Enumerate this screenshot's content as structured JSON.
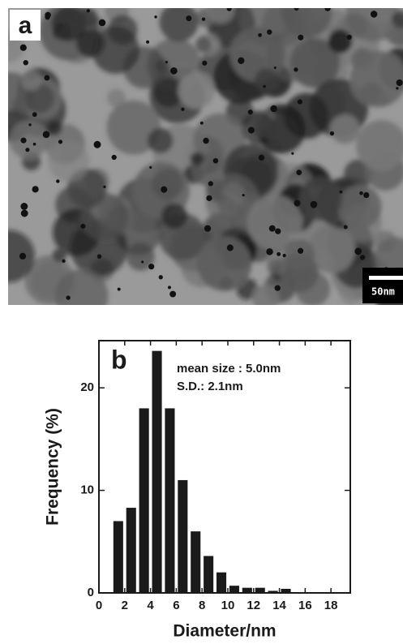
{
  "panel_a": {
    "label": "a",
    "scale_bar": "50nm"
  },
  "chart_data": {
    "type": "histogram",
    "panel_label": "b",
    "annotations": [
      "mean size : 5.0nm",
      "S.D.: 2.1nm"
    ],
    "x_label": "Diameter/nm",
    "y_label": "Frequency (%)",
    "bins": [
      1,
      2,
      3,
      4,
      5,
      6,
      7,
      8,
      9,
      10,
      11,
      12,
      13,
      14,
      15
    ],
    "values": [
      7,
      8.3,
      18,
      23.6,
      18,
      11,
      6,
      3.6,
      2,
      0.7,
      0.5,
      0.5,
      0.2,
      0.4
    ],
    "color": "#1a1a1a",
    "xlim": [
      0,
      19.5
    ],
    "xticks": [
      0,
      2,
      4,
      6,
      8,
      10,
      12,
      14,
      16,
      18
    ],
    "ylim": [
      0,
      24.6
    ],
    "yticks": [
      0,
      10,
      20
    ]
  }
}
